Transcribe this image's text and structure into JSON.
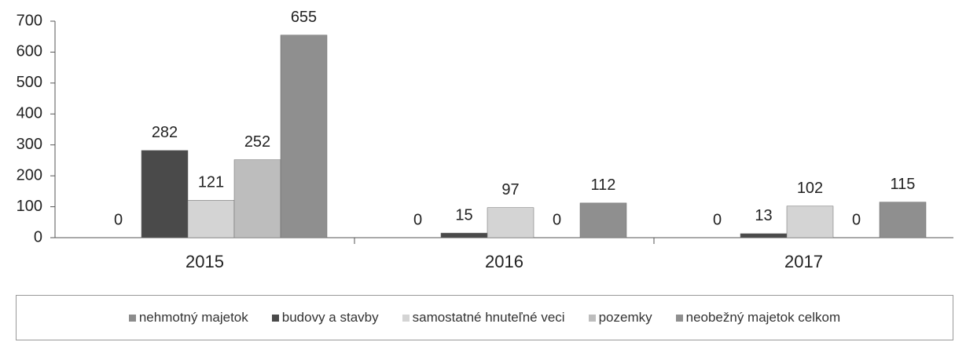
{
  "chart_data": {
    "type": "bar",
    "categories": [
      "2015",
      "2016",
      "2017"
    ],
    "series": [
      {
        "name": "nehmotný majetok",
        "color": "#8c8c8c",
        "values": [
          0,
          0,
          0
        ]
      },
      {
        "name": "budovy a stavby",
        "color": "#4a4a4a",
        "values": [
          282,
          15,
          13
        ]
      },
      {
        "name": "samostatné hnuteľné veci",
        "color": "#d4d4d4",
        "values": [
          121,
          97,
          102
        ]
      },
      {
        "name": "pozemky",
        "color": "#bdbdbd",
        "values": [
          252,
          0,
          0
        ]
      },
      {
        "name": "neobežný majetok celkom",
        "color": "#8f8f8f",
        "values": [
          655,
          112,
          115
        ]
      }
    ],
    "ylim": [
      0,
      700
    ],
    "yticks": [
      0,
      100,
      200,
      300,
      400,
      500,
      600,
      700
    ],
    "grid": false,
    "legend": "bottom"
  }
}
